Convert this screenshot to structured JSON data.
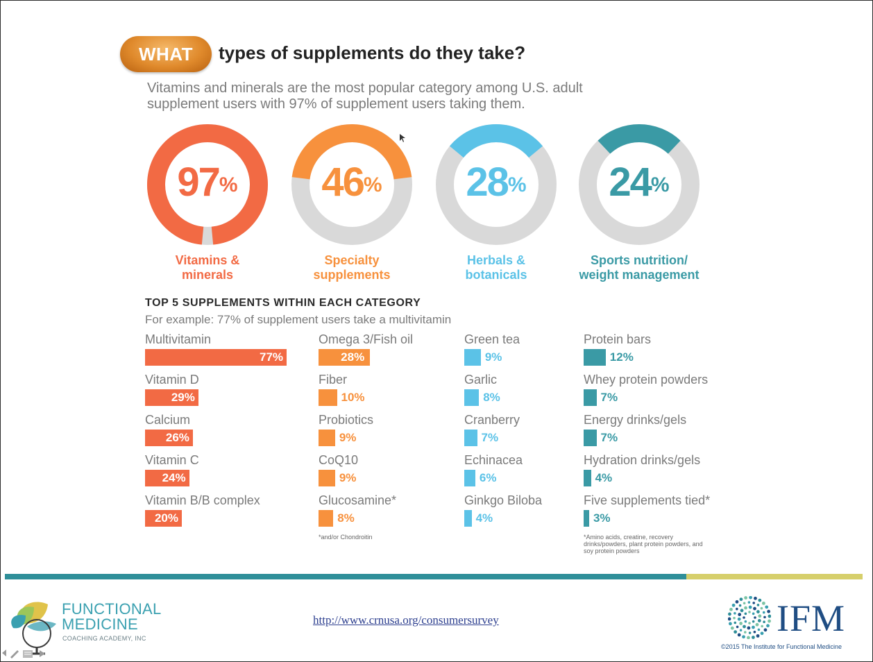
{
  "header": {
    "badge": "WHAT",
    "title": "types of supplements do they take?",
    "subtitle": "Vitamins and minerals are the most popular category among U.S. adult supplement users with 97% of supplement users taking them."
  },
  "colors": {
    "vitamins": "#f26a44",
    "specialty": "#f7913d",
    "herbals": "#5bc2e7",
    "sports": "#3a9aa5",
    "track": "#d9d9d9"
  },
  "chart_data": [
    {
      "type": "pie",
      "style": "donut",
      "categories": [
        "Vitamins & minerals",
        "Specialty supplements",
        "Herbals & botanicals",
        "Sports nutrition/ weight management"
      ],
      "values": [
        97,
        46,
        28,
        24
      ],
      "value_labels": [
        "97",
        "46",
        "28",
        "24"
      ],
      "unit": "%"
    },
    {
      "type": "bar",
      "orientation": "horizontal",
      "title": "TOP 5 SUPPLEMENTS WITHIN EACH CATEGORY",
      "subtitle": "For example: 77% of supplement users take a multivitamin",
      "xlim": [
        0,
        100
      ],
      "groups": [
        {
          "name": "Vitamins & minerals",
          "items": [
            {
              "name": "Multivitamin",
              "value": 77,
              "label": "77%"
            },
            {
              "name": "Vitamin D",
              "value": 29,
              "label": "29%"
            },
            {
              "name": "Calcium",
              "value": 26,
              "label": "26%"
            },
            {
              "name": "Vitamin C",
              "value": 24,
              "label": "24%"
            },
            {
              "name": "Vitamin B/B complex",
              "value": 20,
              "label": "20%"
            }
          ]
        },
        {
          "name": "Specialty supplements",
          "items": [
            {
              "name": "Omega 3/Fish oil",
              "value": 28,
              "label": "28%"
            },
            {
              "name": "Fiber",
              "value": 10,
              "label": "10%"
            },
            {
              "name": "Probiotics",
              "value": 9,
              "label": "9%"
            },
            {
              "name": "CoQ10",
              "value": 9,
              "label": "9%"
            },
            {
              "name": "Glucosamine*",
              "value": 8,
              "label": "8%"
            }
          ],
          "footnote": "*and/or Chondroitin"
        },
        {
          "name": "Herbals & botanicals",
          "items": [
            {
              "name": "Green tea",
              "value": 9,
              "label": "9%"
            },
            {
              "name": "Garlic",
              "value": 8,
              "label": "8%"
            },
            {
              "name": "Cranberry",
              "value": 7,
              "label": "7%"
            },
            {
              "name": "Echinacea",
              "value": 6,
              "label": "6%"
            },
            {
              "name": "Ginkgo Biloba",
              "value": 4,
              "label": "4%"
            }
          ]
        },
        {
          "name": "Sports nutrition/ weight management",
          "items": [
            {
              "name": "Protein bars",
              "value": 12,
              "label": "12%"
            },
            {
              "name": "Whey protein powders",
              "value": 7,
              "label": "7%"
            },
            {
              "name": "Energy drinks/gels",
              "value": 7,
              "label": "7%"
            },
            {
              "name": "Hydration drinks/gels",
              "value": 4,
              "label": "4%"
            },
            {
              "name": "Five supplements tied*",
              "value": 3,
              "label": "3%"
            }
          ],
          "footnote": "*Amino acids, creatine, recovery drinks/powders, plant protein powders, and soy protein powders"
        }
      ]
    }
  ],
  "footer": {
    "brand_line1": "FUNCTIONAL",
    "brand_line2": "MEDICINE",
    "brand_line3": "COACHING ACADEMY, INC",
    "url": "http://www.crnusa.org/consumersurvey",
    "ifm": "IFM",
    "copyright": "©2015 The Institute for Functional Medicine"
  }
}
